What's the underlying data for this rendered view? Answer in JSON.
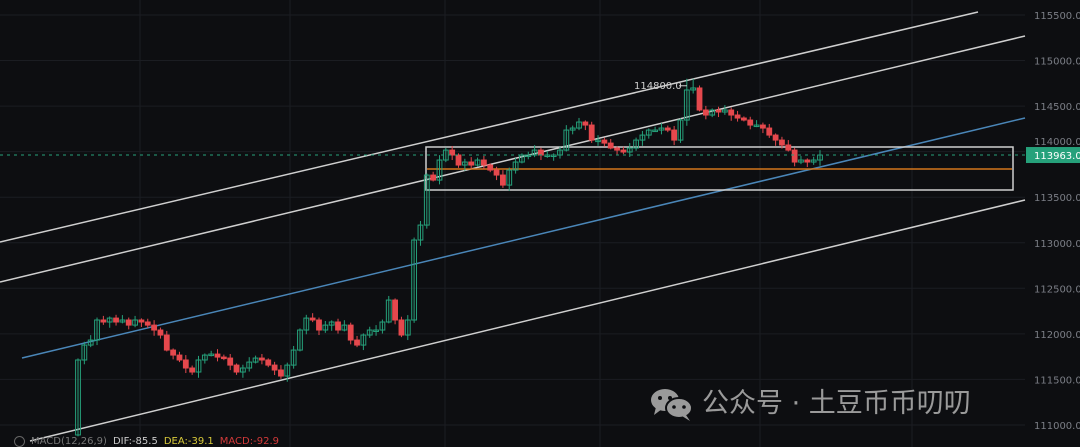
{
  "chart_data": {
    "type": "candlestick",
    "ylim": [
      110900,
      115600
    ],
    "y_ticks": [
      "115500.0",
      "115000.0",
      "114500.0",
      "114000.0",
      "113500.0",
      "113000.0",
      "112500.0",
      "112000.0",
      "111500.0",
      "111000.0"
    ],
    "y_tick_values": [
      115500,
      115000,
      114500,
      114000,
      113500,
      113000,
      112500,
      112000,
      111500,
      111000
    ],
    "first_open": 110890,
    "closes": [
      111713,
      111877,
      111932,
      112152,
      112130,
      112173,
      112130,
      112152,
      112096,
      112152,
      112130,
      112096,
      112042,
      111987,
      111822,
      111767,
      111713,
      111625,
      111581,
      111713,
      111767,
      111778,
      111745,
      111734,
      111657,
      111581,
      111625,
      111690,
      111734,
      111713,
      111657,
      111603,
      111537,
      111657,
      111822,
      112042,
      112173,
      112152,
      112042,
      112096,
      112130,
      112042,
      112096,
      111932,
      111877,
      111987,
      112042,
      112042,
      112130,
      112371,
      112152,
      111987,
      112152,
      113030,
      113194,
      113743,
      113688,
      113908,
      114017,
      113963,
      113853,
      113886,
      113853,
      113908,
      113853,
      113798,
      113743,
      113633,
      113798,
      113886,
      113963,
      113963,
      114017,
      113963,
      113963,
      113963,
      114017,
      114237,
      114259,
      114325,
      114292,
      114127,
      114127,
      114094,
      114040,
      114017,
      113996,
      114040,
      114127,
      114182,
      114237,
      114237,
      114259,
      114237,
      114127,
      114347,
      114677,
      114699,
      114457,
      114402,
      114457,
      114435,
      114457,
      114402,
      114369,
      114347,
      114292,
      114292,
      114259,
      114182,
      114127,
      114073,
      114017,
      113886,
      113908,
      113886,
      113908,
      113963
    ],
    "high_annotation": {
      "label": "114800.0",
      "value": 114800
    },
    "last_price": {
      "label": "113963.0",
      "value": 113963
    },
    "colors": {
      "up": "#26a17b",
      "down": "#e5484d",
      "last_price_bg": "#26a17b",
      "channel": "#cfcfcf",
      "midline": "#4a86b8",
      "box_level": "#d4761c",
      "grid": "#1b1d22"
    }
  },
  "indicator": {
    "name": "MACD(12,26,9)",
    "dif": "DIF:-85.5",
    "dea": "DEA:-39.1",
    "macd": "MACD:-92.9",
    "colors": {
      "dif": "#c9c9c9",
      "dea": "#d8c93a",
      "macd": "#d33a3a"
    }
  },
  "watermark": {
    "text": "公众号 · 土豆币币叨叨",
    "icon": "wechat-icon"
  }
}
